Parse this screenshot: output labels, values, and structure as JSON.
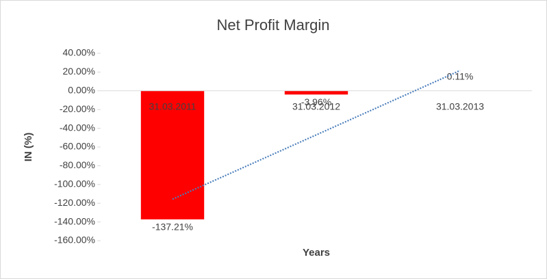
{
  "chart_data": {
    "type": "bar",
    "title": "Net Profit Margin",
    "x_label": "Years",
    "y_label": "IN (%)",
    "categories": [
      "31.03.2011",
      "31.03.2012",
      "31.03.2013"
    ],
    "values": [
      -137.21,
      -3.96,
      0.11
    ],
    "value_labels": [
      "-137.21%",
      "-3.96%",
      "0.11%"
    ],
    "color": "#ff0000",
    "trendline": {
      "type": "linear",
      "color": "#4a7ebb",
      "style": "dotted"
    },
    "ylim": [
      -160,
      40
    ],
    "yticks": [
      {
        "value": 40,
        "label": "40.00%"
      },
      {
        "value": 20,
        "label": "20.00%"
      },
      {
        "value": 0,
        "label": "0.00%"
      },
      {
        "value": -20,
        "label": "-20.00%"
      },
      {
        "value": -40,
        "label": "-40.00%"
      },
      {
        "value": -60,
        "label": "-60.00%"
      },
      {
        "value": -80,
        "label": "-80.00%"
      },
      {
        "value": -100,
        "label": "-100.00%"
      },
      {
        "value": -120,
        "label": "-120.00%"
      },
      {
        "value": -140,
        "label": "-140.00%"
      },
      {
        "value": -160,
        "label": "-160.00%"
      }
    ],
    "grid": false
  }
}
